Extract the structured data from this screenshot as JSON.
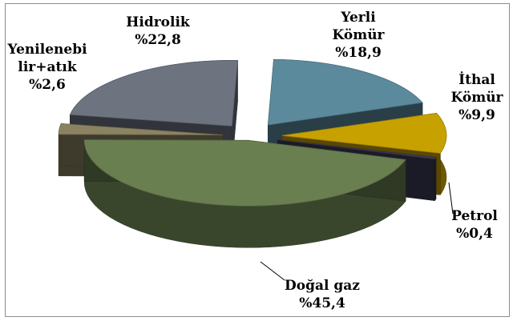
{
  "chart_data": {
    "type": "pie",
    "style": "3d-exploded",
    "title": "",
    "slices": [
      {
        "label_lines": [
          "Yerli",
          "Kömür"
        ],
        "value_text": "%18,9",
        "value": 18.9,
        "color": "#5b8a9c"
      },
      {
        "label_lines": [
          "İthal",
          "Kömür"
        ],
        "value_text": "%9,9",
        "value": 9.9,
        "color": "#c7a100"
      },
      {
        "label_lines": [
          "Petrol"
        ],
        "value_text": "%0,4",
        "value": 0.4,
        "color": "#3c3b56"
      },
      {
        "label_lines": [
          "Doğal gaz"
        ],
        "value_text": "%45,4",
        "value": 45.4,
        "color": "#6a7f50"
      },
      {
        "label_lines": [
          "Yenilenebi",
          "lir+atık"
        ],
        "value_text": "%2,6",
        "value": 2.6,
        "color": "#8b8262"
      },
      {
        "label_lines": [
          "Hidrolik"
        ],
        "value_text": "%22,8",
        "value": 22.8,
        "color": "#6d7480"
      }
    ]
  }
}
